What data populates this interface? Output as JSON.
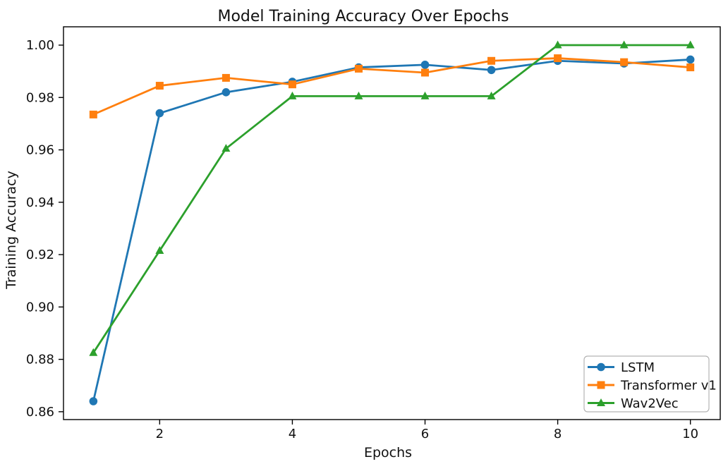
{
  "chart_data": {
    "type": "line",
    "title": "Model Training Accuracy Over Epochs",
    "xlabel": "Epochs",
    "ylabel": "Training Accuracy",
    "x": [
      1,
      2,
      3,
      4,
      5,
      6,
      7,
      8,
      9,
      10
    ],
    "xlim": [
      0.55,
      10.45
    ],
    "ylim": [
      0.857,
      1.007
    ],
    "xticks": [
      2,
      4,
      6,
      8,
      10
    ],
    "yticks": [
      0.86,
      0.88,
      0.9,
      0.92,
      0.94,
      0.96,
      0.98,
      1.0
    ],
    "grid": false,
    "legend_position": "lower right",
    "frame_color": "#000000",
    "text_color": "#111111",
    "background_color": "#ffffff",
    "series": [
      {
        "name": "LSTM",
        "color": "#1f77b4",
        "marker": "circle",
        "values": [
          0.864,
          0.974,
          0.982,
          0.986,
          0.9915,
          0.9925,
          0.9905,
          0.994,
          0.993,
          0.9945
        ]
      },
      {
        "name": "Transformer v1",
        "color": "#ff7f0e",
        "marker": "square",
        "values": [
          0.9735,
          0.9845,
          0.9875,
          0.985,
          0.991,
          0.9895,
          0.994,
          0.995,
          0.9935,
          0.9915
        ]
      },
      {
        "name": "Wav2Vec",
        "color": "#2ca02c",
        "marker": "triangle",
        "values": [
          0.8825,
          0.9215,
          0.9605,
          0.9805,
          0.9805,
          0.9805,
          0.9805,
          1.0,
          1.0,
          1.0
        ]
      }
    ]
  }
}
